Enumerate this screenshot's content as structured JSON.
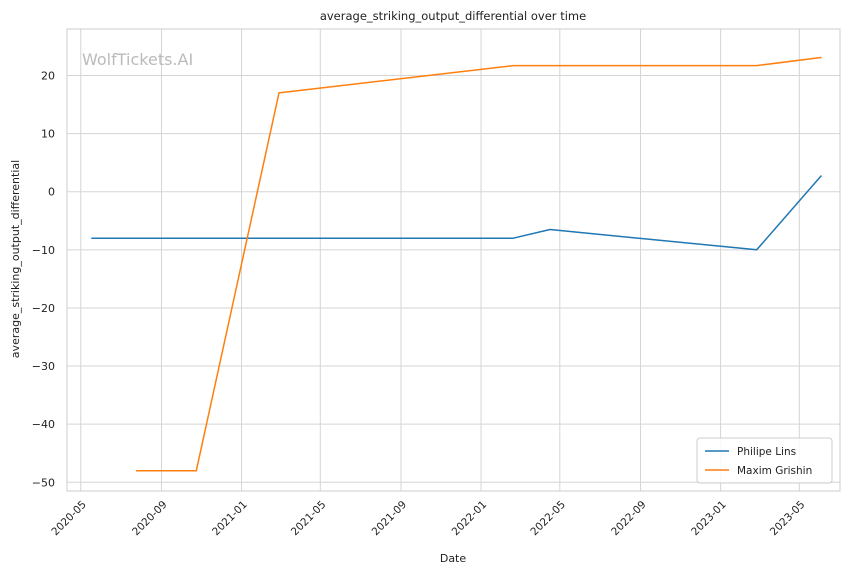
{
  "chart_data": {
    "type": "line",
    "title": "average_striking_output_differential over time",
    "xlabel": "Date",
    "ylabel": "average_striking_output_differential",
    "watermark": "WolfTickets.AI",
    "x_ticks": [
      "2020-05",
      "2020-09",
      "2021-01",
      "2021-05",
      "2021-09",
      "2022-01",
      "2022-05",
      "2022-09",
      "2023-01",
      "2023-05"
    ],
    "y_ticks": [
      20,
      10,
      0,
      -10,
      -20,
      -30,
      -40,
      -50
    ],
    "y_tick_labels": [
      "20",
      "10",
      "0",
      "−10",
      "−20",
      "−30",
      "−40",
      "−50"
    ],
    "xlim": [
      "2020-04-10",
      "2023-07-02"
    ],
    "ylim": [
      -51.5,
      28
    ],
    "grid": true,
    "legend_position": "lower-right",
    "series": [
      {
        "name": "Philipe Lins",
        "color": "#1f77b4",
        "points": [
          {
            "x": "2020-05-18",
            "y": -8.0
          },
          {
            "x": "2022-02-19",
            "y": -8.0
          },
          {
            "x": "2022-04-16",
            "y": -6.5
          },
          {
            "x": "2023-02-25",
            "y": -10.0
          },
          {
            "x": "2023-06-03",
            "y": 2.7
          }
        ]
      },
      {
        "name": "Maxim Grishin",
        "color": "#ff7f0e",
        "points": [
          {
            "x": "2020-07-25",
            "y": -48.0
          },
          {
            "x": "2020-10-24",
            "y": -48.0
          },
          {
            "x": "2021-02-27",
            "y": 17.0
          },
          {
            "x": "2022-02-19",
            "y": 21.7
          },
          {
            "x": "2023-02-25",
            "y": 21.7
          },
          {
            "x": "2023-06-03",
            "y": 23.1
          }
        ]
      }
    ]
  }
}
